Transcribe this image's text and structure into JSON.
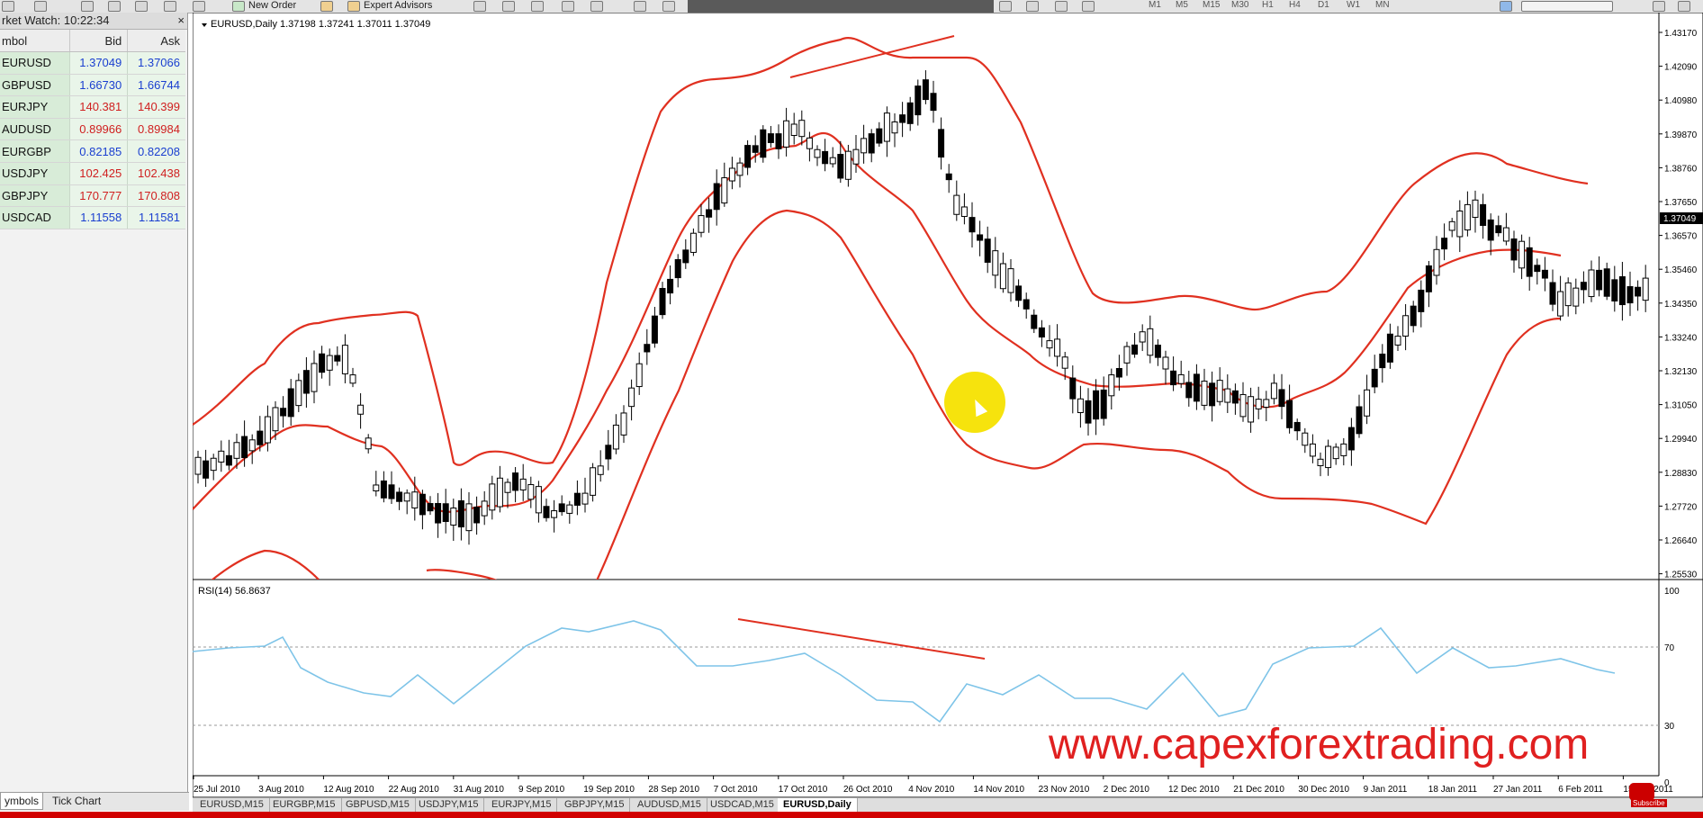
{
  "toolbar": {
    "new_order": "New Order",
    "expert_advisors": "Expert Advisors",
    "timeframes": [
      "M1",
      "M5",
      "M15",
      "M30",
      "H1",
      "H4",
      "D1",
      "W1",
      "MN"
    ]
  },
  "market_watch": {
    "title": "rket Watch: 10:22:34",
    "close": "×",
    "headers": {
      "symbol": "mbol",
      "bid": "Bid",
      "ask": "Ask"
    },
    "rows": [
      {
        "symbol": "EURUSD",
        "bid": "1.37049",
        "ask": "1.37066",
        "color": "#1a3fd0"
      },
      {
        "symbol": "GBPUSD",
        "bid": "1.66730",
        "ask": "1.66744",
        "color": "#1a3fd0"
      },
      {
        "symbol": "EURJPY",
        "bid": "140.381",
        "ask": "140.399",
        "color": "#d02020"
      },
      {
        "symbol": "AUDUSD",
        "bid": "0.89966",
        "ask": "0.89984",
        "color": "#d02020"
      },
      {
        "symbol": "EURGBP",
        "bid": "0.82185",
        "ask": "0.82208",
        "color": "#1a3fd0"
      },
      {
        "symbol": "USDJPY",
        "bid": "102.425",
        "ask": "102.438",
        "color": "#d02020"
      },
      {
        "symbol": "GBPJPY",
        "bid": "170.777",
        "ask": "170.808",
        "color": "#d02020"
      },
      {
        "symbol": "USDCAD",
        "bid": "1.11558",
        "ask": "1.11581",
        "color": "#1a3fd0"
      }
    ],
    "tabs": [
      "ymbols",
      "Tick Chart"
    ]
  },
  "chart": {
    "header": "EURUSD,Daily  1.37198 1.37241 1.37011 1.37049",
    "price_labels": [
      "1.43170",
      "1.42090",
      "1.40980",
      "1.39870",
      "1.38760",
      "1.37650",
      "1.36570",
      "1.35460",
      "1.34350",
      "1.33240",
      "1.32130",
      "1.31050",
      "1.29940",
      "1.28830",
      "1.27720",
      "1.26640",
      "1.25530"
    ],
    "current_price": "1.37049",
    "date_labels": [
      "25 Jul 2010",
      "3 Aug 2010",
      "12 Aug 2010",
      "22 Aug 2010",
      "31 Aug 2010",
      "9 Sep 2010",
      "19 Sep 2010",
      "28 Sep 2010",
      "7 Oct 2010",
      "17 Oct 2010",
      "26 Oct 2010",
      "4 Nov 2010",
      "14 Nov 2010",
      "23 Nov 2010",
      "2 Dec 2010",
      "12 Dec 2010",
      "21 Dec 2010",
      "30 Dec 2010",
      "9 Jan 2011",
      "18 Jan 2011",
      "27 Jan 2011",
      "6 Feb 2011",
      "15 Feb 2011"
    ],
    "bands_color": "#e03020",
    "candle_up": "#ffffff",
    "candle_down": "#000000"
  },
  "rsi": {
    "header": "RSI(14) 56.8637",
    "levels": [
      "100",
      "70",
      "30",
      "0"
    ],
    "line_color": "#7ec4e8"
  },
  "chart_tabs": [
    "EURUSD,M15",
    "EURGBP,M15",
    "GBPUSD,M15",
    "USDJPY,M15",
    "EURJPY,M15",
    "GBPJPY,M15",
    "AUDUSD,M15",
    "USDCAD,M15",
    "EURUSD,Daily"
  ],
  "watermark": "www.capexforextrading.com",
  "youtube_sub": "Subscribe"
}
